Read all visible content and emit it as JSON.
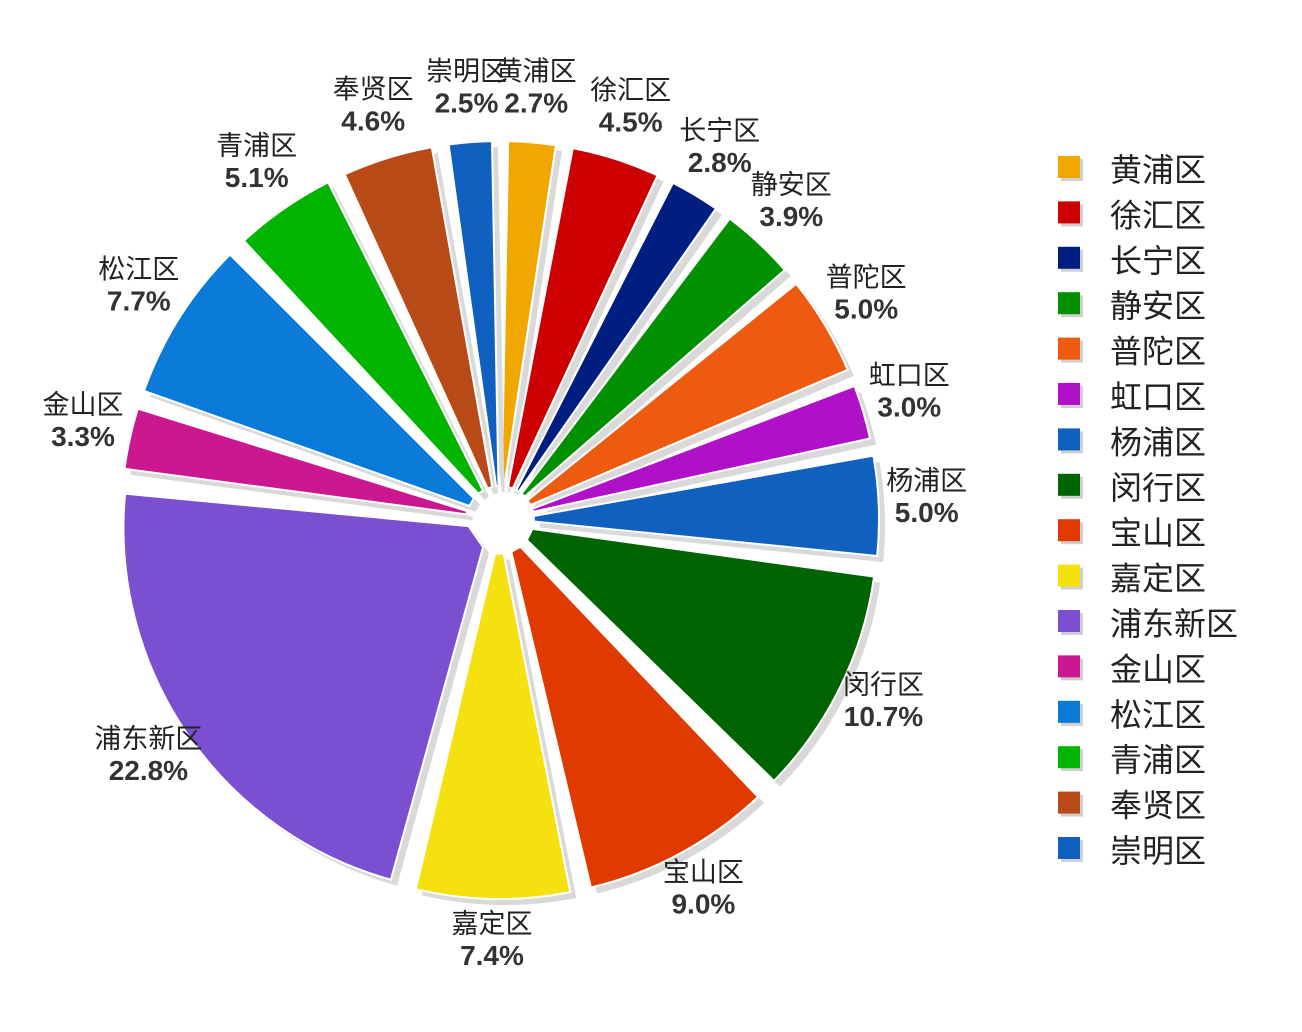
{
  "chart_data": {
    "type": "pie",
    "title": "",
    "legend_position": "right",
    "categories": [
      "黄浦区",
      "徐汇区",
      "长宁区",
      "静安区",
      "普陀区",
      "虹口区",
      "杨浦区",
      "闵行区",
      "宝山区",
      "嘉定区",
      "浦东新区",
      "金山区",
      "松江区",
      "青浦区",
      "奉贤区",
      "崇明区"
    ],
    "values": [
      2.7,
      4.5,
      2.8,
      3.9,
      5.0,
      3.0,
      5.0,
      10.7,
      9.0,
      7.4,
      22.8,
      3.3,
      7.7,
      5.1,
      4.6,
      2.5
    ],
    "data_labels": [
      "2.7%",
      "4.5%",
      "2.8%",
      "3.9%",
      "5.0%",
      "3.0%",
      "5.0%",
      "10.7%",
      "9.0%",
      "7.4%",
      "22.8%",
      "3.3%",
      "7.7%",
      "5.1%",
      "4.6%",
      "2.5%"
    ],
    "slice_labels": [
      "黄浦区",
      "徐汇区",
      "长宁区",
      "静安区",
      "普陀区",
      "虹口区",
      "杨浦区",
      "闵行区",
      "宝山区",
      "嘉定区",
      "浦东新区",
      "金山区",
      "松江区",
      "青浦区",
      "奉贤区",
      "崇明区"
    ],
    "colors": [
      "#F0A800",
      "#CC0000",
      "#001E80",
      "#009000",
      "#EE5A10",
      "#B010C8",
      "#1060C0",
      "#006400",
      "#E03A00",
      "#F5E010",
      "#7A50D0",
      "#CC1890",
      "#0A7AD8",
      "#00B400",
      "#B84A18",
      "#1060C0"
    ]
  }
}
